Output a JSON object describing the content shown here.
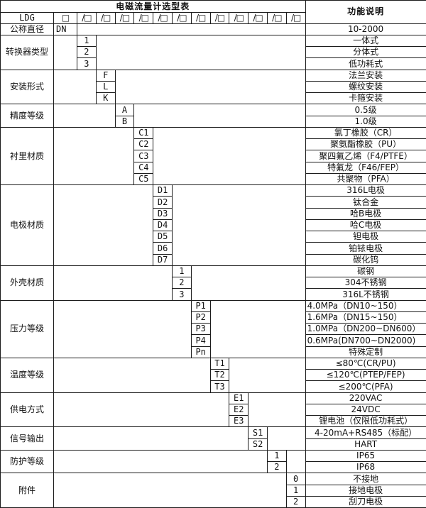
{
  "title": "电磁流量计选型表",
  "function_header": "功能说明",
  "model_row": {
    "model_code": "LDG",
    "slots": [
      "□",
      "/□",
      "/□",
      "/□",
      "/□",
      "/□",
      "/□",
      "/□",
      "/□",
      "/□",
      "/□",
      "/□",
      "/□"
    ]
  },
  "groups": [
    {
      "label": "公称直径",
      "col": 0,
      "rows": [
        {
          "code": "DN",
          "desc": "10-2000"
        }
      ]
    },
    {
      "label": "转换器类型",
      "col": 1,
      "rows": [
        {
          "code": "1",
          "desc": "一体式"
        },
        {
          "code": "2",
          "desc": "分体式"
        },
        {
          "code": "3",
          "desc": "低功耗式"
        }
      ]
    },
    {
      "label": "安装形式",
      "col": 2,
      "rows": [
        {
          "code": "F",
          "desc": "法兰安装"
        },
        {
          "code": "L",
          "desc": "螺纹安装"
        },
        {
          "code": "K",
          "desc": "卡箍安装"
        }
      ]
    },
    {
      "label": "精度等级",
      "col": 3,
      "rows": [
        {
          "code": "A",
          "desc": "0.5级"
        },
        {
          "code": "B",
          "desc": "1.0级"
        }
      ]
    },
    {
      "label": "衬里材质",
      "col": 4,
      "rows": [
        {
          "code": "C1",
          "desc": "氯丁橡胶（CR）"
        },
        {
          "code": "C2",
          "desc": "聚氨酯橡胶（PU）"
        },
        {
          "code": "C3",
          "desc": "聚四氟乙烯（F4/PTFE）"
        },
        {
          "code": "C4",
          "desc": "特氟龙（F46/FEP）"
        },
        {
          "code": "C5",
          "desc": "共聚物（PFA）"
        }
      ]
    },
    {
      "label": "电极材质",
      "col": 5,
      "rows": [
        {
          "code": "D1",
          "desc": "316L电极"
        },
        {
          "code": "D2",
          "desc": "钛合金"
        },
        {
          "code": "D3",
          "desc": "哈B电极"
        },
        {
          "code": "D4",
          "desc": "哈C电极"
        },
        {
          "code": "D5",
          "desc": "钽电极"
        },
        {
          "code": "D6",
          "desc": "铂铱电极"
        },
        {
          "code": "D7",
          "desc": "碳化钨"
        }
      ]
    },
    {
      "label": "外壳材质",
      "col": 6,
      "rows": [
        {
          "code": "1",
          "desc": "碳钢"
        },
        {
          "code": "2",
          "desc": "304不锈钢"
        },
        {
          "code": "3",
          "desc": "316L不锈钢"
        }
      ]
    },
    {
      "label": "压力等级",
      "col": 7,
      "rows": [
        {
          "code": "P1",
          "desc": "4.0MPa（DN10~150）",
          "align": "left"
        },
        {
          "code": "P2",
          "desc": "1.6MPa（DN15~150）",
          "align": "left"
        },
        {
          "code": "P3",
          "desc": "1.0MPa（DN200~DN600）",
          "align": "left"
        },
        {
          "code": "P4",
          "desc": "0.6MPa(DN700~DN2000)",
          "align": "left"
        },
        {
          "code": "Pn",
          "desc": "特殊定制"
        }
      ]
    },
    {
      "label": "温度等级",
      "col": 8,
      "rows": [
        {
          "code": "T1",
          "desc": "≤80℃(CR/PU)"
        },
        {
          "code": "T2",
          "desc": "≤120℃(PTEP/FEP)"
        },
        {
          "code": "T3",
          "desc": "≤200℃(PFA)"
        }
      ]
    },
    {
      "label": "供电方式",
      "col": 9,
      "rows": [
        {
          "code": "E1",
          "desc": "220VAC"
        },
        {
          "code": "E2",
          "desc": "24VDC"
        },
        {
          "code": "E3",
          "desc": "锂电池（仅限低功耗式）"
        }
      ]
    },
    {
      "label": "信号输出",
      "col": 10,
      "rows": [
        {
          "code": "S1",
          "desc": "4-20mA+RS485（标配）"
        },
        {
          "code": "S2",
          "desc": "HART"
        }
      ]
    },
    {
      "label": "防护等级",
      "col": 11,
      "rows": [
        {
          "code": "1",
          "desc": "IP65"
        },
        {
          "code": "2",
          "desc": "IP68"
        }
      ]
    },
    {
      "label": "附件",
      "col": 12,
      "rows": [
        {
          "code": "0",
          "desc": "不接地"
        },
        {
          "code": "1",
          "desc": "接地电极"
        },
        {
          "code": "2",
          "desc": "刮刀电极"
        }
      ]
    }
  ]
}
